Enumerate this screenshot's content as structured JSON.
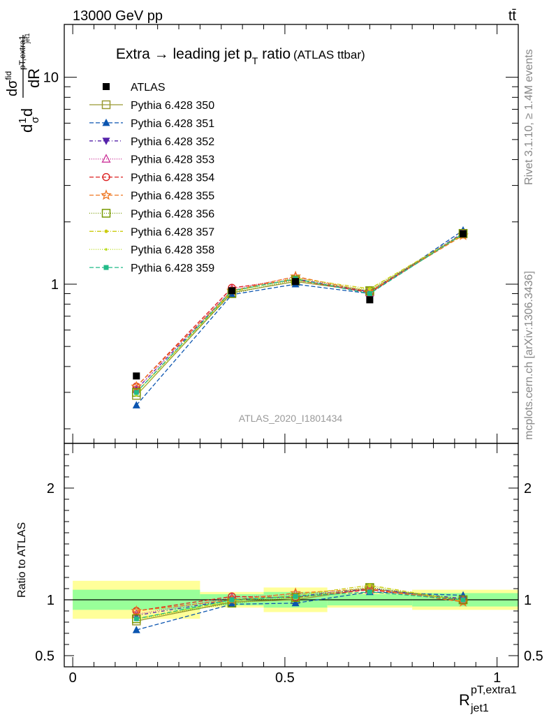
{
  "header": {
    "energy_label": "13000 GeV pp",
    "process_label": "tt̄",
    "side_label_top": "Rivet 3.1.10, ≥ 1.4M events",
    "side_label_bottom": "mcplots.cern.ch [arXiv:1306.3436]",
    "analysis_label": "ATLAS_2020_I1801434"
  },
  "chart_data": {
    "type": "line",
    "title_main": "Extra → leading jet p",
    "title_sub": "T",
    "title_tail": " ratio",
    "title_paren": "(ATLAS ttbar)",
    "y_axis_label_parts": [
      "d",
      "1",
      "σ",
      "d",
      "dσ",
      "fid",
      "pT,extra1",
      "jet1",
      "dR"
    ],
    "x_axis_label_base": "R",
    "x_axis_label_sup": "pT,extra1",
    "x_axis_label_sub": "jet1",
    "ratio_ylabel": "Ratio to ATLAS",
    "xlim": [
      -0.02,
      1.05
    ],
    "ylim_main_log": [
      0.17,
      18
    ],
    "ylim_ratio": [
      0.4,
      2.4
    ],
    "y_scale_main": "log",
    "x_ticks": [
      0,
      0.5,
      1
    ],
    "x_tick_labels": [
      "0",
      "0.5",
      "1"
    ],
    "main_y_ticks": [
      1,
      10
    ],
    "main_y_tick_labels": [
      "1",
      "10"
    ],
    "ratio_y_ticks": [
      0.5,
      1,
      2
    ],
    "ratio_y_tick_labels": [
      "0.5",
      "1",
      "2"
    ],
    "x": [
      0.15,
      0.375,
      0.525,
      0.7,
      0.92
    ],
    "data": {
      "name": "ATLAS",
      "values": [
        0.36,
        0.93,
        1.03,
        0.84,
        1.75
      ],
      "bins": [
        [
          0.0,
          0.3
        ],
        [
          0.3,
          0.45
        ],
        [
          0.45,
          0.6
        ],
        [
          0.6,
          0.8
        ],
        [
          0.8,
          1.05
        ]
      ],
      "ratio_band_inner": [
        0.09,
        0.05,
        0.07,
        0.05,
        0.06
      ],
      "ratio_band_outer": [
        0.17,
        0.07,
        0.11,
        0.07,
        0.09
      ]
    },
    "series": [
      {
        "name": "Pythia 6.428 350",
        "color": "#999933",
        "marker": "square-open",
        "dash": "solid",
        "values": [
          0.29,
          0.91,
          1.03,
          0.92,
          1.75
        ],
        "ratio": [
          0.81,
          0.98,
          1.0,
          1.1,
          1.0
        ]
      },
      {
        "name": "Pythia 6.428 351",
        "color": "#0b55b0",
        "marker": "triangle-up",
        "dash": "6,3",
        "values": [
          0.26,
          0.89,
          1.0,
          0.9,
          1.82
        ],
        "ratio": [
          0.73,
          0.96,
          0.97,
          1.07,
          1.04
        ]
      },
      {
        "name": "Pythia 6.428 352",
        "color": "#5522aa",
        "marker": "triangle-down",
        "dash": "5,3,1,3",
        "values": [
          0.31,
          0.93,
          1.06,
          0.92,
          1.77
        ],
        "ratio": [
          0.86,
          1.0,
          1.03,
          1.1,
          1.01
        ]
      },
      {
        "name": "Pythia 6.428 353",
        "color": "#cc3399",
        "marker": "triangle-open",
        "dash": "1,2",
        "values": [
          0.31,
          0.95,
          1.08,
          0.91,
          1.75
        ],
        "ratio": [
          0.87,
          1.02,
          1.05,
          1.09,
          1.0
        ]
      },
      {
        "name": "Pythia 6.428 354",
        "color": "#dd2222",
        "marker": "circle-open",
        "dash": "6,3",
        "values": [
          0.32,
          0.96,
          1.05,
          0.91,
          1.74
        ],
        "ratio": [
          0.9,
          1.03,
          1.02,
          1.09,
          0.99
        ]
      },
      {
        "name": "Pythia 6.428 355",
        "color": "#ee7722",
        "marker": "star-open",
        "dash": "6,3",
        "values": [
          0.32,
          0.93,
          1.09,
          0.92,
          1.72
        ],
        "ratio": [
          0.9,
          1.0,
          1.06,
          1.1,
          0.98
        ]
      },
      {
        "name": "Pythia 6.428 356",
        "color": "#779900",
        "marker": "square-open",
        "dash": "1,2",
        "values": [
          0.3,
          0.9,
          1.05,
          0.93,
          1.76
        ],
        "ratio": [
          0.83,
          0.97,
          1.02,
          1.11,
          1.0
        ]
      },
      {
        "name": "Pythia 6.428 357",
        "color": "#cccc11",
        "marker": "dot",
        "dash": "6,2,1,2",
        "values": [
          0.3,
          0.92,
          1.07,
          0.95,
          1.74
        ],
        "ratio": [
          0.83,
          0.99,
          1.04,
          1.13,
          0.99
        ]
      },
      {
        "name": "Pythia 6.428 358",
        "color": "#bbdd22",
        "marker": "dot-small",
        "dash": "1,2",
        "values": [
          0.29,
          0.93,
          1.04,
          0.94,
          1.73
        ],
        "ratio": [
          0.82,
          1.0,
          1.01,
          1.12,
          0.99
        ]
      },
      {
        "name": "Pythia 6.428 359",
        "color": "#22bb88",
        "marker": "square-filled",
        "dash": "6,3",
        "values": [
          0.3,
          0.93,
          1.06,
          0.9,
          1.75
        ],
        "ratio": [
          0.83,
          1.0,
          1.03,
          1.07,
          1.0
        ]
      }
    ]
  }
}
